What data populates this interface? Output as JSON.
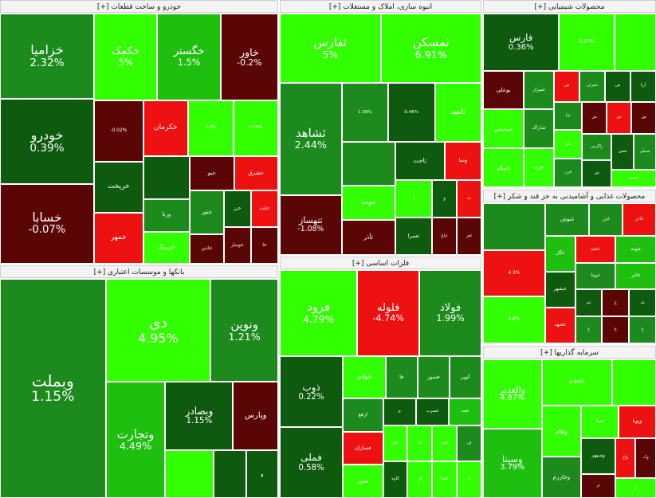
{
  "chart_data": {
    "type": "treemap",
    "colors": {
      "pos_strong": "#32ff00",
      "pos_mid": "#1fbf10",
      "pos_dark": "#1c8a1c",
      "pos_deep": "#0e5a0e",
      "neg_strong": "#ee1111",
      "neg_mid": "#b01515",
      "neg_deep": "#5a0606"
    },
    "sectors": [
      {
        "id": "auto",
        "title": "خودرو و ساخت قطعات [+]",
        "tiles": [
          {
            "name": "خزامیا",
            "change": "2.32%",
            "color": "pos_dark",
            "size": 16
          },
          {
            "name": "خودرو",
            "change": "0.39%",
            "color": "pos_deep",
            "size": 16
          },
          {
            "name": "خسابا",
            "change": "-0.07%",
            "color": "neg_deep",
            "size": 15
          },
          {
            "name": "خکمک",
            "change": "5%",
            "color": "pos_strong",
            "size": 11
          },
          {
            "name": "خگستر",
            "change": "1.5%",
            "color": "pos_mid",
            "size": 11
          },
          {
            "name": "خاور",
            "change": "-0.2%",
            "color": "neg_deep",
            "size": 10
          },
          {
            "name": "",
            "change": "-0.02%",
            "color": "neg_deep",
            "size": 6
          },
          {
            "name": "",
            "change": "",
            "color": "pos_deep",
            "size": 4
          },
          {
            "name": "خریخت",
            "change": "",
            "color": "pos_deep",
            "size": 5
          },
          {
            "name": "خمهر",
            "change": "",
            "color": "neg_strong",
            "size": 5
          },
          {
            "name": "خکرمان",
            "change": "",
            "color": "neg_strong",
            "size": 5
          },
          {
            "name": "",
            "change": "3.3%",
            "color": "pos_strong",
            "size": 5
          },
          {
            "name": "",
            "change": "3.75%",
            "color": "pos_strong",
            "size": 5
          },
          {
            "name": "ورنا",
            "change": "",
            "color": "pos_dark",
            "size": 3
          },
          {
            "name": "خریزنگ",
            "change": "",
            "color": "pos_strong",
            "size": 3
          },
          {
            "name": "خبو",
            "change": "",
            "color": "neg_deep",
            "size": 3
          },
          {
            "name": "خشرق",
            "change": "",
            "color": "neg_strong",
            "size": 3
          },
          {
            "name": "ختور",
            "change": "",
            "color": "pos_dark",
            "size": 3
          },
          {
            "name": "خاذین",
            "change": "",
            "color": "neg_deep",
            "size": 2
          },
          {
            "name": "خرز",
            "change": "",
            "color": "pos_deep",
            "size": 2
          },
          {
            "name": "خلنت",
            "change": "",
            "color": "neg_strong",
            "size": 2
          },
          {
            "name": "خوساز",
            "change": "",
            "color": "neg_deep",
            "size": 2
          },
          {
            "name": "خا",
            "change": "",
            "color": "neg_deep",
            "size": 2
          }
        ]
      },
      {
        "id": "construction",
        "title": "انبوه سازی، املاک و مستغلات [+]",
        "tiles": [
          {
            "name": "ثفارس",
            "change": "5%",
            "color": "pos_strong",
            "size": 15
          },
          {
            "name": "ثمسکن",
            "change": "6.91%",
            "color": "pos_strong",
            "size": 15
          },
          {
            "name": "ثشاهد",
            "change": "2.44%",
            "color": "pos_dark",
            "size": 15
          },
          {
            "name": "",
            "change": "1.38%",
            "color": "pos_dark",
            "size": 6
          },
          {
            "name": "",
            "change": "0.46%",
            "color": "pos_deep",
            "size": 6
          },
          {
            "name": "",
            "change": "",
            "color": "pos_dark",
            "size": 5
          },
          {
            "name": "ثنوسا",
            "change": "",
            "color": "pos_strong",
            "size": 4
          },
          {
            "name": "ثآذر",
            "change": "",
            "color": "neg_deep",
            "size": 4
          },
          {
            "name": "ثاخت",
            "change": "",
            "color": "pos_deep",
            "size": 4
          },
          {
            "name": "ثتهساز",
            "change": "-1.08%",
            "color": "neg_deep",
            "size": 8
          },
          {
            "name": "ثامید",
            "change": "",
            "color": "pos_strong",
            "size": 6
          },
          {
            "name": "وسا",
            "change": "",
            "color": "neg_strong",
            "size": 3
          },
          {
            "name": "آ",
            "change": "",
            "color": "pos_strong",
            "size": 3
          },
          {
            "name": "و",
            "change": "",
            "color": "pos_deep",
            "size": 2
          },
          {
            "name": "ثعمرا",
            "change": "",
            "color": "pos_deep",
            "size": 3
          },
          {
            "name": "ث",
            "change": "",
            "color": "neg_strong",
            "size": 2
          },
          {
            "name": "ثباغ",
            "change": "",
            "color": "neg_deep",
            "size": 2
          },
          {
            "name": "ثغر",
            "change": "",
            "color": "neg_deep",
            "size": 2
          }
        ]
      },
      {
        "id": "chemicals",
        "title": "محصولات شیمیایی [+]",
        "tiles": [
          {
            "name": "فارس",
            "change": "0.36%",
            "color": "pos_deep",
            "size": 11
          },
          {
            "name": "",
            "change": "0.57%",
            "color": "pos_strong",
            "size": 8
          },
          {
            "name": "",
            "change": "",
            "color": "pos_strong",
            "size": 6
          },
          {
            "name": "بوعلی",
            "change": "",
            "color": "neg_deep",
            "size": 4
          },
          {
            "name": "شپدیس",
            "change": "",
            "color": "pos_strong",
            "size": 4
          },
          {
            "name": "تاپیکو",
            "change": "",
            "color": "pos_strong",
            "size": 4
          },
          {
            "name": "شیراز",
            "change": "",
            "color": "pos_dark",
            "size": 3
          },
          {
            "name": "شاراک",
            "change": "",
            "color": "pos_dark",
            "size": 3
          },
          {
            "name": "نوری",
            "change": "",
            "color": "pos_strong",
            "size": 3
          },
          {
            "name": "ش",
            "change": "",
            "color": "neg_strong",
            "size": 2
          },
          {
            "name": "شیران",
            "change": "",
            "color": "pos_dark",
            "size": 2
          },
          {
            "name": "ش",
            "change": "",
            "color": "pos_deep",
            "size": 2
          },
          {
            "name": "آریا",
            "change": "",
            "color": "pos_deep",
            "size": 2
          },
          {
            "name": "شا",
            "change": "",
            "color": "pos_dark",
            "size": 2
          },
          {
            "name": "کلر",
            "change": "",
            "color": "pos_strong",
            "size": 2
          },
          {
            "name": "قرن",
            "change": "",
            "color": "pos_dark",
            "size": 2
          },
          {
            "name": "ش",
            "change": "",
            "color": "neg_deep",
            "size": 2
          },
          {
            "name": "ش",
            "change": "",
            "color": "neg_strong",
            "size": 2
          },
          {
            "name": "ش",
            "change": "",
            "color": "neg_deep",
            "size": 2
          },
          {
            "name": "زاگرس",
            "change": "",
            "color": "pos_dark",
            "size": 2
          },
          {
            "name": "ش",
            "change": "",
            "color": "pos_deep",
            "size": 2
          },
          {
            "name": "شفن",
            "change": "",
            "color": "pos_deep",
            "size": 2
          },
          {
            "name": "شملی",
            "change": "",
            "color": "pos_dark",
            "size": 2
          },
          {
            "name": "شجم",
            "change": "",
            "color": "pos_strong",
            "size": 2
          }
        ]
      },
      {
        "id": "food",
        "title": "محصولات غذایی و آشامیدنی به جز قند و شکر [+]",
        "tiles": [
          {
            "name": "",
            "change": "",
            "color": "pos_dark",
            "size": 8
          },
          {
            "name": "",
            "change": "4.3%",
            "color": "neg_strong",
            "size": 8
          },
          {
            "name": "",
            "change": "4.8%",
            "color": "pos_strong",
            "size": 8
          },
          {
            "name": "غنوش",
            "change": "",
            "color": "pos_dark",
            "size": 4
          },
          {
            "name": "غزر",
            "change": "",
            "color": "pos_dark",
            "size": 3
          },
          {
            "name": "غاذر",
            "change": "",
            "color": "neg_strong",
            "size": 3
          },
          {
            "name": "غگل",
            "change": "",
            "color": "pos_mid",
            "size": 3
          },
          {
            "name": "غبشهر",
            "change": "",
            "color": "pos_deep",
            "size": 3
          },
          {
            "name": "غشهد",
            "change": "",
            "color": "neg_strong",
            "size": 3
          },
          {
            "name": "غشه",
            "change": "",
            "color": "neg_strong",
            "size": 3
          },
          {
            "name": "غپونه",
            "change": "",
            "color": "pos_mid",
            "size": 3
          },
          {
            "name": "غم",
            "change": "",
            "color": "pos_deep",
            "size": 2
          },
          {
            "name": "غ",
            "change": "",
            "color": "pos_dark",
            "size": 2
          },
          {
            "name": "غ",
            "change": "",
            "color": "neg_deep",
            "size": 2
          },
          {
            "name": "غویتا",
            "change": "",
            "color": "pos_dark",
            "size": 3
          },
          {
            "name": "غد",
            "change": "",
            "color": "pos_deep",
            "size": 2
          },
          {
            "name": "غالبر",
            "change": "",
            "color": "pos_mid",
            "size": 3
          },
          {
            "name": "غ",
            "change": "",
            "color": "neg_deep",
            "size": 2
          },
          {
            "name": "غ",
            "change": "",
            "color": "pos_dark",
            "size": 2
          }
        ]
      },
      {
        "id": "banks",
        "title": "بانکها و موسسات اعتباری [+]",
        "tiles": [
          {
            "name": "وبملت",
            "change": "1.15%",
            "color": "pos_dark",
            "size": 30
          },
          {
            "name": "دی",
            "change": "4.95%",
            "color": "pos_strong",
            "size": 14
          },
          {
            "name": "ونوین",
            "change": "1.21%",
            "color": "pos_dark",
            "size": 9
          },
          {
            "name": "وتجارت",
            "change": "4.49%",
            "color": "pos_mid",
            "size": 9
          },
          {
            "name": "وبصادر",
            "change": "1.15%",
            "color": "pos_deep",
            "size": 6
          },
          {
            "name": "وپارس",
            "change": "",
            "color": "neg_deep",
            "size": 4
          },
          {
            "name": "",
            "change": "",
            "color": "pos_strong",
            "size": 3
          },
          {
            "name": "",
            "change": "",
            "color": "pos_deep",
            "size": 2
          },
          {
            "name": "و",
            "change": "",
            "color": "pos_deep",
            "size": 2
          }
        ]
      },
      {
        "id": "metals",
        "title": "فلزات اساسی [+]",
        "tiles": [
          {
            "name": "فرود",
            "change": "4.79%",
            "color": "pos_strong",
            "size": 15
          },
          {
            "name": "فلوله",
            "change": "-4.74%",
            "color": "neg_strong",
            "size": 12
          },
          {
            "name": "فولاد",
            "change": "1.99%",
            "color": "pos_dark",
            "size": 12
          },
          {
            "name": "ذوب",
            "change": "0.22%",
            "color": "pos_deep",
            "size": 10
          },
          {
            "name": "فملی",
            "change": "0.58%",
            "color": "pos_deep",
            "size": 10
          },
          {
            "name": "فولای",
            "change": "",
            "color": "pos_strong",
            "size": 4
          },
          {
            "name": "فا",
            "change": "",
            "color": "pos_dark",
            "size": 3
          },
          {
            "name": "فسوز",
            "change": "",
            "color": "pos_dark",
            "size": 3
          },
          {
            "name": "کویر",
            "change": "",
            "color": "pos_dark",
            "size": 3
          },
          {
            "name": "ارفع",
            "change": "",
            "color": "pos_dark",
            "size": 3
          },
          {
            "name": "م",
            "change": "",
            "color": "pos_deep",
            "size": 2
          },
          {
            "name": "فسرب",
            "change": "",
            "color": "pos_deep",
            "size": 2
          },
          {
            "name": "فجه",
            "change": "",
            "color": "pos_mid",
            "size": 2
          },
          {
            "name": "فتو",
            "change": "",
            "color": "pos_strong",
            "size": 2
          },
          {
            "name": "فسازان",
            "change": "",
            "color": "neg_strong",
            "size": 3
          },
          {
            "name": "کاوه",
            "change": "",
            "color": "pos_deep",
            "size": 2
          },
          {
            "name": "فا",
            "change": "",
            "color": "pos_strong",
            "size": 2
          },
          {
            "name": "فز",
            "change": "",
            "color": "pos_strong",
            "size": 2
          },
          {
            "name": "فجر",
            "change": "",
            "color": "pos_strong",
            "size": 2
          },
          {
            "name": "فخوز",
            "change": "",
            "color": "pos_strong",
            "size": 3
          },
          {
            "name": "ف",
            "change": "",
            "color": "pos_dark",
            "size": 2
          },
          {
            "name": "فسا",
            "change": "",
            "color": "pos_strong",
            "size": 2
          },
          {
            "name": "ف",
            "change": "",
            "color": "pos_strong",
            "size": 2
          }
        ]
      },
      {
        "id": "investment",
        "title": "سرمایه گذاریها [+]",
        "tiles": [
          {
            "name": "والغدیر",
            "change": "4.97%",
            "color": "pos_strong",
            "size": 10
          },
          {
            "name": "",
            "change": "4.96%",
            "color": "pos_strong",
            "size": 8
          },
          {
            "name": "",
            "change": "",
            "color": "pos_strong",
            "size": 5
          },
          {
            "name": "وهام",
            "change": "",
            "color": "pos_strong",
            "size": 5
          },
          {
            "name": "وسینا",
            "change": "3.79%",
            "color": "pos_mid",
            "size": 10
          },
          {
            "name": "وخارزم",
            "change": "",
            "color": "pos_dark",
            "size": 4
          },
          {
            "name": "صبا",
            "change": "",
            "color": "pos_strong",
            "size": 3
          },
          {
            "name": "وپویا",
            "change": "",
            "color": "neg_strong",
            "size": 3
          },
          {
            "name": "یر",
            "change": "",
            "color": "neg_deep",
            "size": 2
          },
          {
            "name": "وسپهر",
            "change": "",
            "color": "pos_deep",
            "size": 3
          },
          {
            "name": "واغ",
            "change": "",
            "color": "neg_strong",
            "size": 2
          },
          {
            "name": "وک",
            "change": "",
            "color": "neg_deep",
            "size": 2
          },
          {
            "name": "و",
            "change": "",
            "color": "pos_strong",
            "size": 2
          }
        ]
      }
    ]
  }
}
